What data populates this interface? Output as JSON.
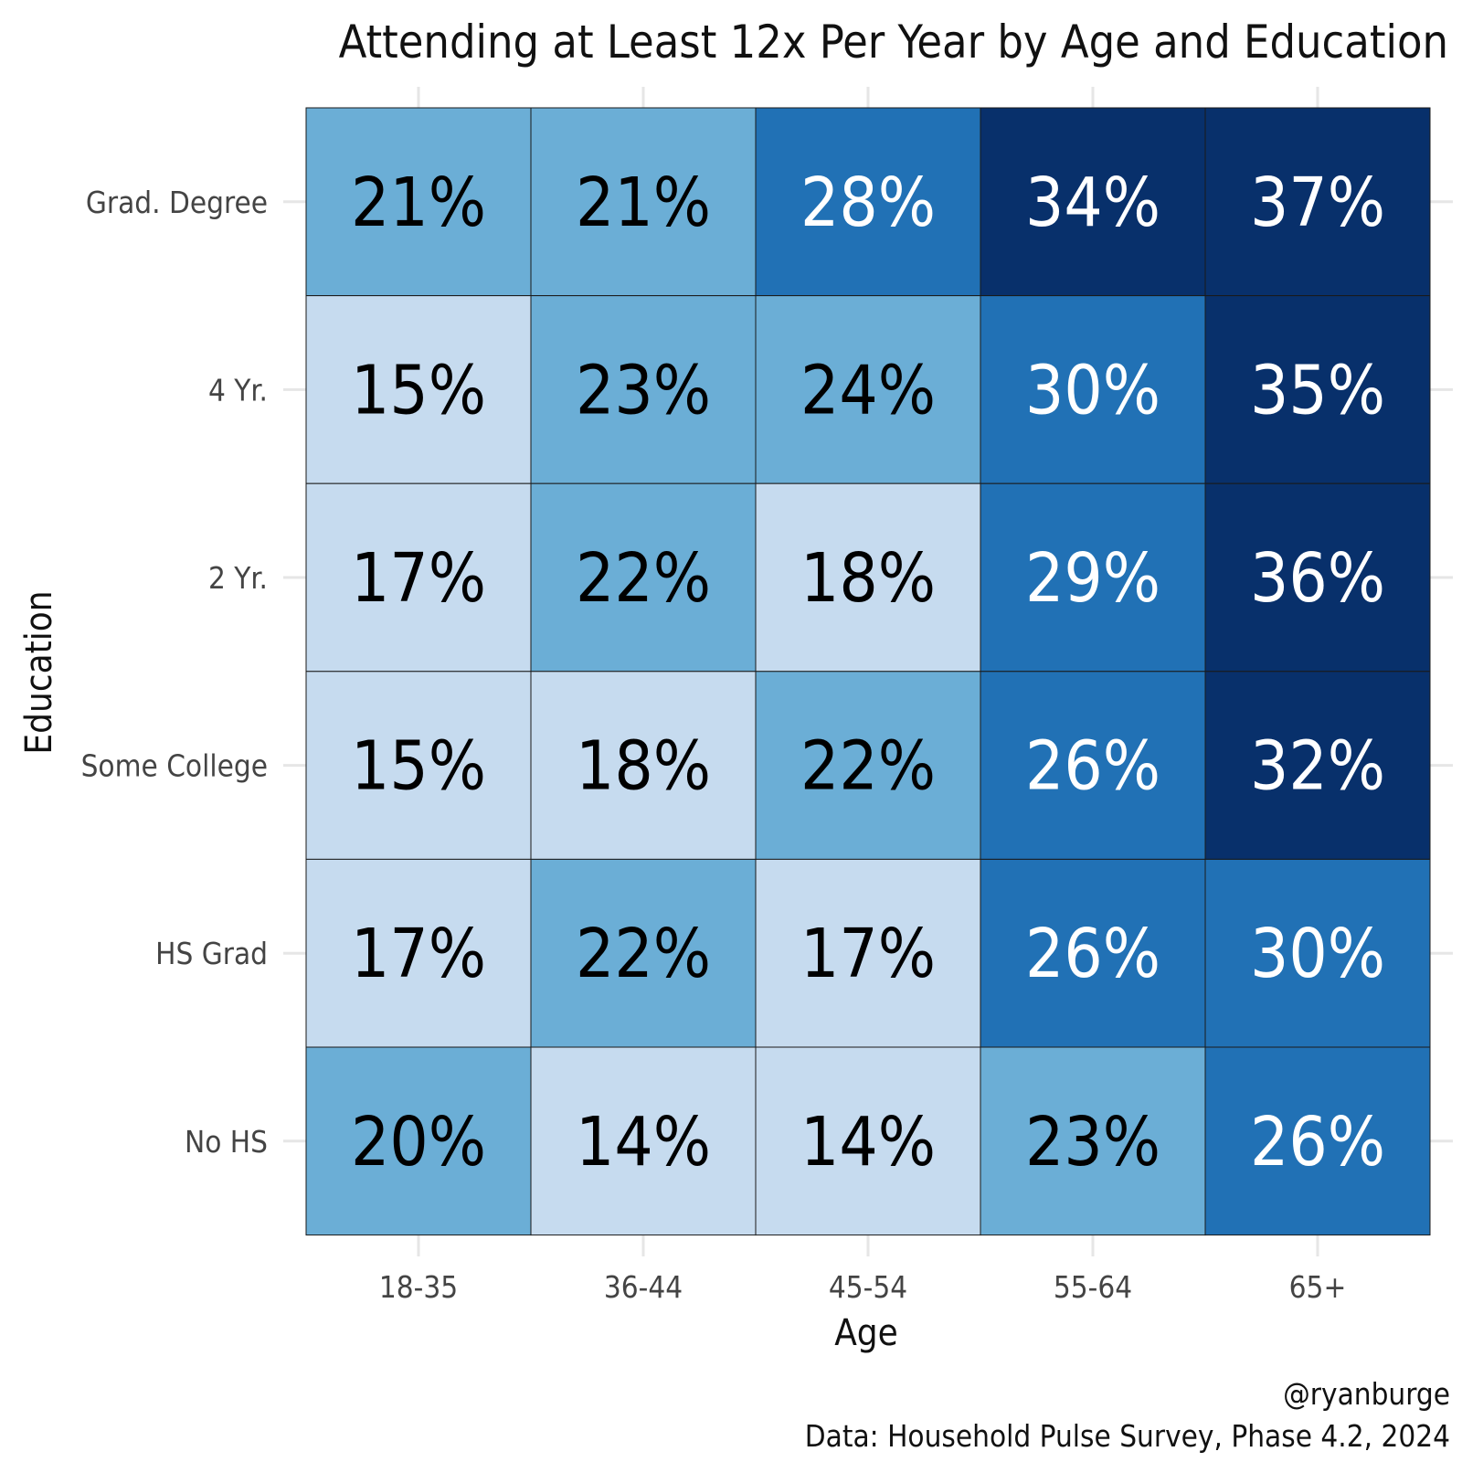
{
  "chart_data": {
    "type": "heatmap",
    "title": "Attending at Least 12x Per Year by Age and Education",
    "xlabel": "Age",
    "ylabel": "Education",
    "x_categories": [
      "18-35",
      "36-44",
      "45-54",
      "55-64",
      "65+"
    ],
    "y_categories": [
      "Grad. Degree",
      "4 Yr.",
      "2 Yr.",
      "Some College",
      "HS Grad",
      "No HS"
    ],
    "values": [
      [
        21,
        21,
        28,
        34,
        37
      ],
      [
        15,
        23,
        24,
        30,
        35
      ],
      [
        17,
        22,
        18,
        29,
        36
      ],
      [
        15,
        18,
        22,
        26,
        32
      ],
      [
        17,
        22,
        17,
        26,
        30
      ],
      [
        20,
        14,
        14,
        23,
        26
      ]
    ],
    "labels": [
      [
        "21%",
        "21%",
        "28%",
        "34%",
        "37%"
      ],
      [
        "15%",
        "23%",
        "24%",
        "30%",
        "35%"
      ],
      [
        "17%",
        "22%",
        "18%",
        "29%",
        "36%"
      ],
      [
        "15%",
        "18%",
        "22%",
        "26%",
        "32%"
      ],
      [
        "17%",
        "22%",
        "17%",
        "26%",
        "30%"
      ],
      [
        "20%",
        "14%",
        "14%",
        "23%",
        "26%"
      ]
    ],
    "color_bins": [
      {
        "min": 0,
        "max": 19,
        "color": "#c6dbef",
        "text_color": "#000000"
      },
      {
        "min": 19,
        "max": 25,
        "color": "#6baed6",
        "text_color": "#000000"
      },
      {
        "min": 25,
        "max": 31,
        "color": "#2171b5",
        "text_color": "#ffffff"
      },
      {
        "min": 31,
        "max": 100,
        "color": "#08306b",
        "text_color": "#ffffff"
      }
    ],
    "grid": true,
    "legend": "none"
  },
  "caption": {
    "handle": "@ryanburge",
    "source": "Data: Household Pulse Survey, Phase 4.2, 2024"
  }
}
